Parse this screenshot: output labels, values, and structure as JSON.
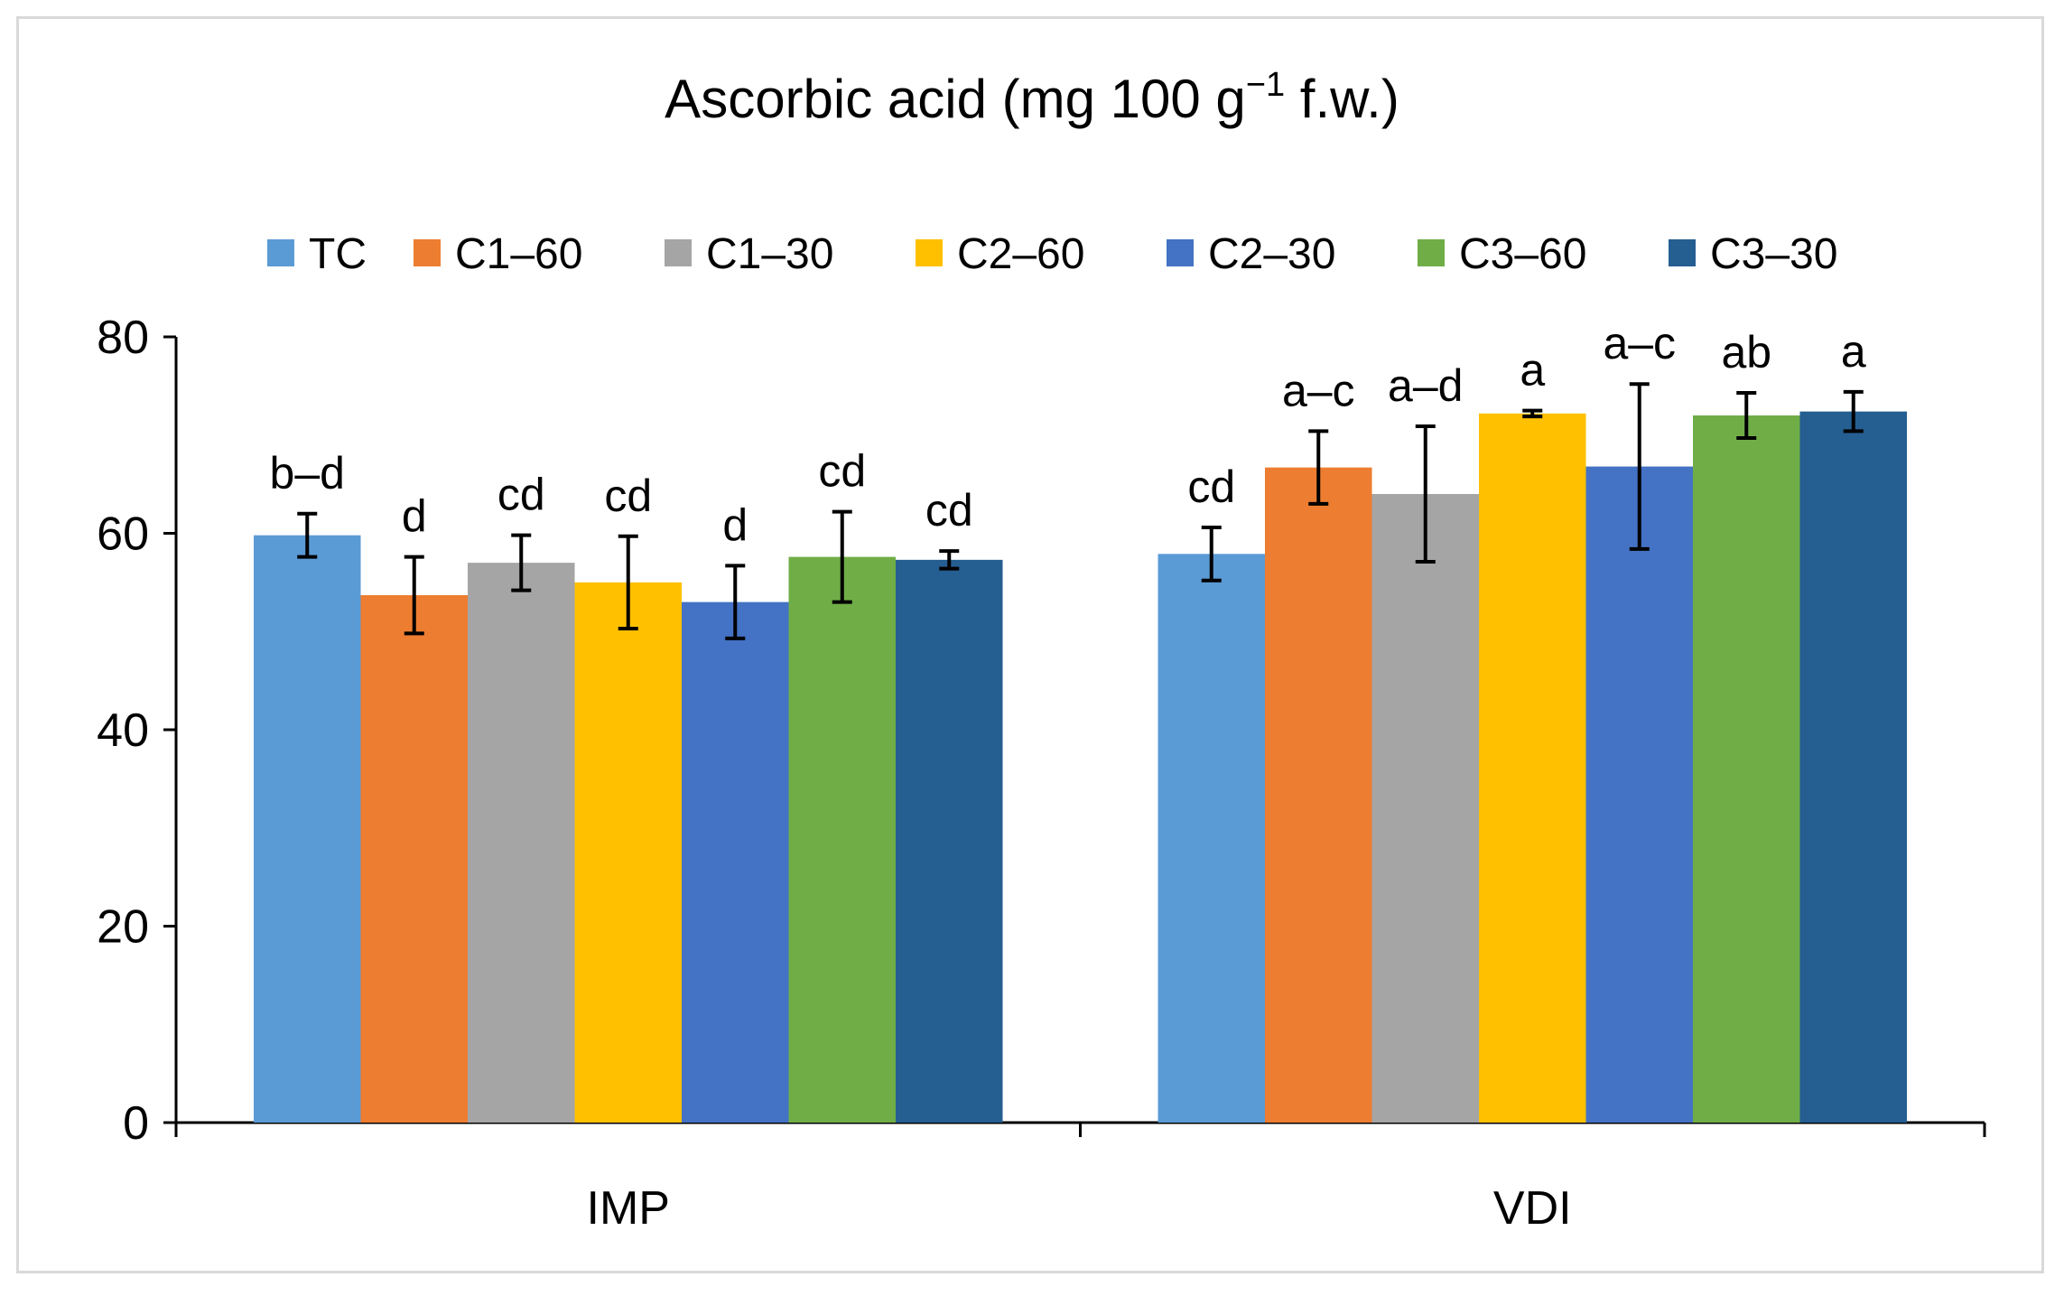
{
  "chart_data": {
    "type": "bar",
    "title_main": "Ascorbic acid (mg 100 g",
    "title_sup": "−1",
    "title_end": " f.w.)",
    "xlabel": "",
    "ylabel": "",
    "ylim": [
      0,
      80
    ],
    "yticks": [
      0,
      20,
      40,
      60,
      80
    ],
    "ytick_labels": [
      "0",
      "20",
      "40",
      "60",
      "80"
    ],
    "categories": [
      "IMP",
      "VDI"
    ],
    "legend_position": "top",
    "grid": false,
    "series": [
      {
        "name": "TC",
        "color": "#5b9bd5",
        "values": [
          59.8,
          57.9
        ],
        "errors": [
          2.2,
          2.7
        ],
        "letters": [
          "b–d",
          "cd"
        ]
      },
      {
        "name": "C1–60",
        "color": "#ed7d31",
        "values": [
          53.7,
          66.7
        ],
        "errors": [
          3.9,
          3.7
        ],
        "letters": [
          "d",
          "a–c"
        ]
      },
      {
        "name": "C1–30",
        "color": "#a5a5a5",
        "values": [
          57.0,
          64.0
        ],
        "errors": [
          2.8,
          6.9
        ],
        "letters": [
          "cd",
          "a–d"
        ]
      },
      {
        "name": "C2–60",
        "color": "#ffc000",
        "values": [
          55.0,
          72.2
        ],
        "errors": [
          4.7,
          0.3
        ],
        "letters": [
          "cd",
          "a"
        ]
      },
      {
        "name": "C2–30",
        "color": "#4472c4",
        "values": [
          53.0,
          66.8
        ],
        "errors": [
          3.7,
          8.4
        ],
        "letters": [
          "d",
          "a–c"
        ]
      },
      {
        "name": "C3–60",
        "color": "#70ad47",
        "values": [
          57.6,
          72.0
        ],
        "errors": [
          4.6,
          2.3
        ],
        "letters": [
          "cd",
          "ab"
        ]
      },
      {
        "name": "C3–30",
        "color": "#255e91",
        "values": [
          57.3,
          72.4
        ],
        "errors": [
          0.9,
          2.0
        ],
        "letters": [
          "cd",
          "a"
        ]
      }
    ]
  }
}
